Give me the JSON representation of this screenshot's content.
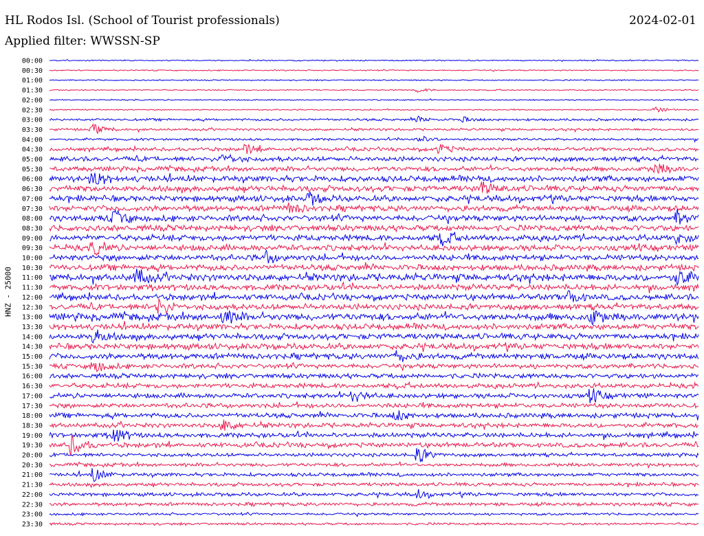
{
  "header": {
    "station": "HL Rodos Isl. (School of Tourist professionals)",
    "date": "2024-02-01",
    "filter": "Applied filter: WWSSN-SP"
  },
  "chart_data": {
    "type": "line",
    "title": "HL Rodos Isl. (School of Tourist professionals)",
    "ylabel": "HNZ - 25000",
    "xlabel": "",
    "row_labels": [
      "00:00",
      "00:30",
      "01:00",
      "01:30",
      "02:00",
      "02:30",
      "03:00",
      "03:30",
      "04:00",
      "04:30",
      "05:00",
      "05:30",
      "06:00",
      "06:30",
      "07:00",
      "07:30",
      "08:00",
      "08:30",
      "09:00",
      "09:30",
      "10:00",
      "10:30",
      "11:00",
      "11:30",
      "12:00",
      "12:30",
      "13:00",
      "13:30",
      "14:00",
      "14:30",
      "15:00",
      "15:30",
      "16:00",
      "16:30",
      "17:00",
      "17:30",
      "18:00",
      "18:30",
      "19:00",
      "19:30",
      "20:00",
      "20:30",
      "21:00",
      "21:30",
      "22:00",
      "22:30",
      "23:00",
      "23:30"
    ],
    "row_minutes": 30,
    "colors": [
      "#0000e6",
      "#e8174a"
    ],
    "row_noise_amplitude": [
      1,
      1,
      1,
      1,
      1,
      1,
      2,
      2,
      2,
      3,
      4,
      4,
      5,
      5,
      5,
      5,
      5,
      5,
      5,
      5,
      5,
      5,
      6,
      5,
      5,
      5,
      6,
      5,
      5,
      5,
      5,
      4,
      4,
      4,
      4,
      4,
      4,
      4,
      4,
      4,
      3,
      3,
      3,
      3,
      3,
      3,
      2,
      2
    ],
    "events": [
      {
        "row": 3,
        "minute": 17,
        "amp": 3
      },
      {
        "row": 5,
        "minute": 28,
        "amp": 4
      },
      {
        "row": 6,
        "minute": 17,
        "amp": 4
      },
      {
        "row": 6,
        "minute": 19,
        "amp": 4
      },
      {
        "row": 7,
        "minute": 2,
        "amp": 8
      },
      {
        "row": 8,
        "minute": 17,
        "amp": 6
      },
      {
        "row": 9,
        "minute": 9,
        "amp": 8
      },
      {
        "row": 9,
        "minute": 18,
        "amp": 7
      },
      {
        "row": 10,
        "minute": 8,
        "amp": 9
      },
      {
        "row": 11,
        "minute": 28,
        "amp": 9
      },
      {
        "row": 12,
        "minute": 2,
        "amp": 11
      },
      {
        "row": 13,
        "minute": 20,
        "amp": 9
      },
      {
        "row": 14,
        "minute": 12,
        "amp": 9
      },
      {
        "row": 15,
        "minute": 11,
        "amp": 8
      },
      {
        "row": 16,
        "minute": 3,
        "amp": 12
      },
      {
        "row": 16,
        "minute": 29,
        "amp": 9
      },
      {
        "row": 18,
        "minute": 18,
        "amp": 11
      },
      {
        "row": 18,
        "minute": 29,
        "amp": 8
      },
      {
        "row": 19,
        "minute": 2,
        "amp": 10
      },
      {
        "row": 20,
        "minute": 10,
        "amp": 8
      },
      {
        "row": 22,
        "minute": 4,
        "amp": 11
      },
      {
        "row": 22,
        "minute": 29,
        "amp": 12
      },
      {
        "row": 24,
        "minute": 24,
        "amp": 9
      },
      {
        "row": 25,
        "minute": 5,
        "amp": 12
      },
      {
        "row": 26,
        "minute": 8,
        "amp": 10
      },
      {
        "row": 26,
        "minute": 25,
        "amp": 11
      },
      {
        "row": 28,
        "minute": 2,
        "amp": 11
      },
      {
        "row": 30,
        "minute": 16,
        "amp": 8
      },
      {
        "row": 31,
        "minute": 2,
        "amp": 10
      },
      {
        "row": 34,
        "minute": 14,
        "amp": 9
      },
      {
        "row": 34,
        "minute": 25,
        "amp": 10
      },
      {
        "row": 36,
        "minute": 16,
        "amp": 8
      },
      {
        "row": 37,
        "minute": 8,
        "amp": 9
      },
      {
        "row": 38,
        "minute": 3,
        "amp": 11
      },
      {
        "row": 39,
        "minute": 1,
        "amp": 14
      },
      {
        "row": 40,
        "minute": 17,
        "amp": 12
      },
      {
        "row": 42,
        "minute": 2,
        "amp": 10
      },
      {
        "row": 44,
        "minute": 17,
        "amp": 6
      }
    ]
  }
}
